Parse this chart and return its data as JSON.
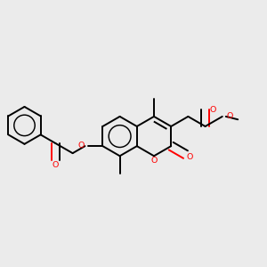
{
  "bg_color": "#ebebeb",
  "bond_color": "#000000",
  "oxygen_color": "#ff0000",
  "lw": 1.4,
  "figsize": [
    3.0,
    3.0
  ],
  "dpi": 100,
  "xlim": [
    0.0,
    1.0
  ],
  "ylim": [
    0.25,
    0.78
  ]
}
